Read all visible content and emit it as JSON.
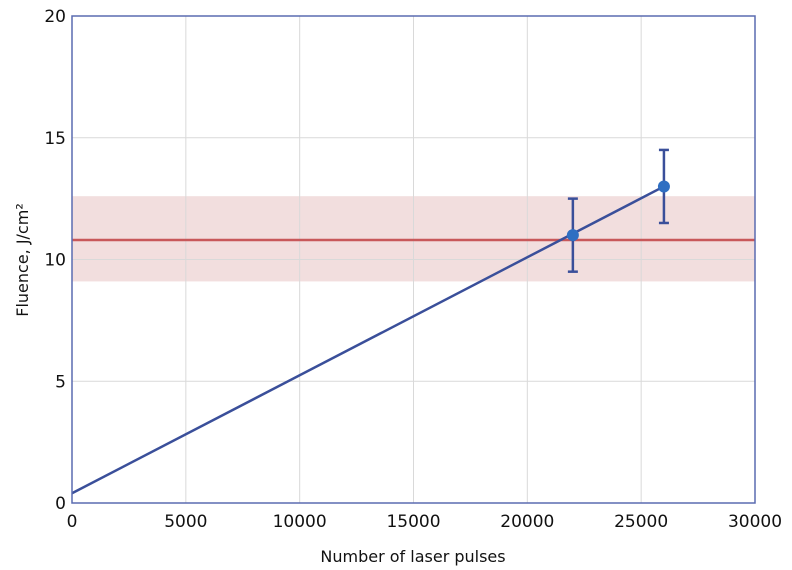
{
  "chart_data": {
    "type": "line",
    "title": "",
    "xlabel": "Number of laser pulses",
    "ylabel": "Fluence, J/cm²",
    "xlim": [
      0,
      30000
    ],
    "ylim": [
      0,
      20
    ],
    "x_ticks": [
      0,
      5000,
      10000,
      15000,
      20000,
      25000,
      30000
    ],
    "y_ticks": [
      0,
      5,
      10,
      15,
      20
    ],
    "x_tick_labels": [
      "0",
      "5000",
      "10000",
      "15000",
      "20000",
      "25000",
      "30000"
    ],
    "y_tick_labels": [
      "0",
      "5",
      "10",
      "15",
      "20"
    ],
    "grid": true,
    "series": [
      {
        "type": "line",
        "x": [
          0,
          26000
        ],
        "y": [
          0.4,
          13.0
        ],
        "color": "#3a4f9a"
      },
      {
        "type": "errorbar",
        "x": [
          22000,
          26000
        ],
        "y": [
          11.0,
          13.0
        ],
        "yerr": [
          1.5,
          1.5
        ],
        "color": "#2f6fc2",
        "errcolor": "#3a4f9a"
      },
      {
        "type": "hline",
        "y": 10.8,
        "band": [
          9.1,
          12.6
        ],
        "color": "#c8585a",
        "band_color": "#f2dede"
      }
    ]
  }
}
